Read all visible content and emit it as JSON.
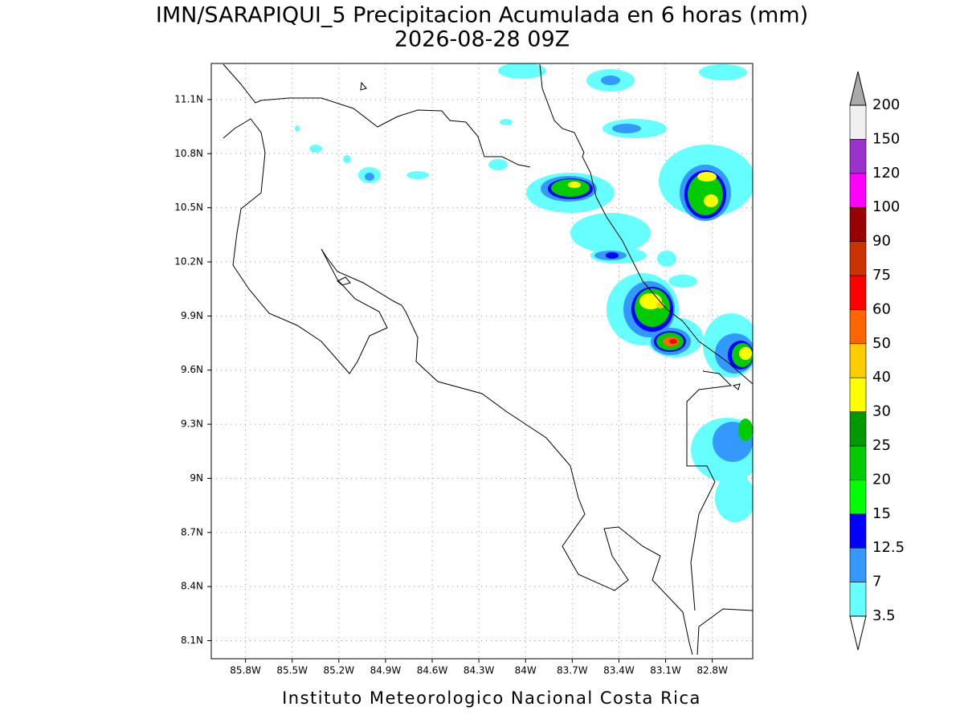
{
  "title": "IMN/SARAPIQUI_5 Precipitacion Acumulada en 6 horas (mm)",
  "subtitle": "2026-08-28 09Z",
  "footer": "Instituto Meteorologico Nacional Costa Rica",
  "map": {
    "xlim": [
      -86.02,
      -82.54
    ],
    "ylim": [
      8.0,
      11.3
    ],
    "xticks": [
      {
        "value": -85.8,
        "label": "85.8W"
      },
      {
        "value": -85.5,
        "label": "85.5W"
      },
      {
        "value": -85.2,
        "label": "85.2W"
      },
      {
        "value": -84.9,
        "label": "84.9W"
      },
      {
        "value": -84.6,
        "label": "84.6W"
      },
      {
        "value": -84.3,
        "label": "84.3W"
      },
      {
        "value": -84.0,
        "label": "84W"
      },
      {
        "value": -83.7,
        "label": "83.7W"
      },
      {
        "value": -83.4,
        "label": "83.4W"
      },
      {
        "value": -83.1,
        "label": "83.1W"
      },
      {
        "value": -82.8,
        "label": "82.8W"
      }
    ],
    "yticks": [
      {
        "value": 8.1,
        "label": "8.1N"
      },
      {
        "value": 8.4,
        "label": "8.4N"
      },
      {
        "value": 8.7,
        "label": "8.7N"
      },
      {
        "value": 9.0,
        "label": "9N"
      },
      {
        "value": 9.3,
        "label": "9.3N"
      },
      {
        "value": 9.6,
        "label": "9.6N"
      },
      {
        "value": 9.9,
        "label": "9.9N"
      },
      {
        "value": 10.2,
        "label": "10.2N"
      },
      {
        "value": 10.5,
        "label": "10.5N"
      },
      {
        "value": 10.8,
        "label": "10.8N"
      },
      {
        "value": 11.1,
        "label": "11.1N"
      }
    ],
    "grid": true,
    "colorbar": {
      "levels": [
        3.5,
        7,
        12.5,
        15,
        20,
        25,
        30,
        40,
        50,
        60,
        75,
        90,
        100,
        120,
        150,
        200
      ],
      "colors": [
        "#ffffff",
        "#66ffff",
        "#3399ff",
        "#0000ff",
        "#00ff00",
        "#00cc00",
        "#009900",
        "#ffff00",
        "#ffcc00",
        "#ff6600",
        "#ff0000",
        "#cc3300",
        "#990000",
        "#ff00ff",
        "#9933cc",
        "#f0f0f0",
        "#aaaaaa"
      ]
    }
  }
}
